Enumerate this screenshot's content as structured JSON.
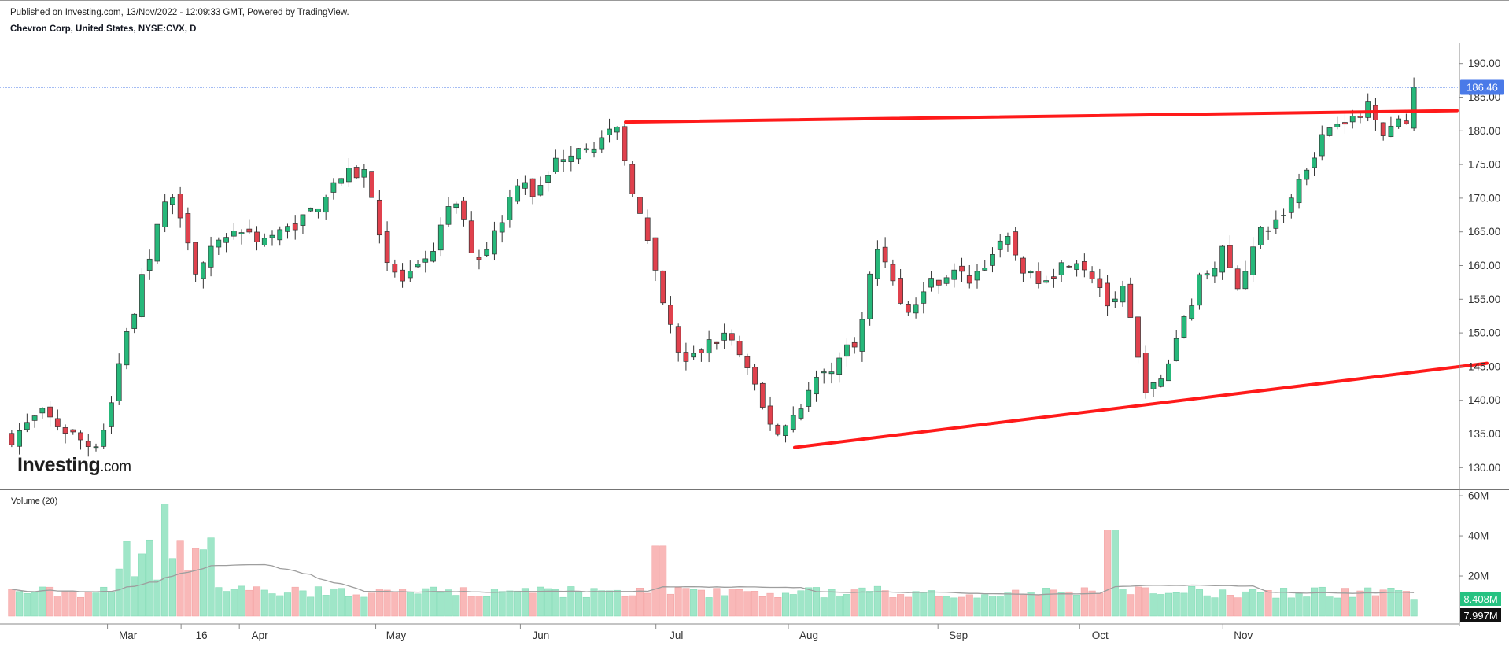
{
  "header": {
    "published": "Published on Investing.com, 13/Nov/2022 - 12:09:33 GMT, Powered by TradingView.",
    "symbol": "Chevron Corp, United States, NYSE:CVX, D"
  },
  "logo": {
    "text": "Investing",
    "suffix": ".com"
  },
  "colors": {
    "up": "#26b87a",
    "down": "#e0414d",
    "up_vol": "#9fe6c8",
    "down_vol": "#f9b8b8",
    "trendline": "#ff1a1a",
    "ma": "#9e9e9e",
    "last_price_bg": "#4a7ae8"
  },
  "chart_data": {
    "type": "candlestick",
    "price_axis": {
      "ticks": [
        130,
        135,
        140,
        145,
        150,
        155,
        160,
        165,
        170,
        175,
        180,
        185,
        190
      ],
      "tick_labels": [
        "130.00",
        "135.00",
        "140.00",
        "145.00",
        "150.00",
        "155.00",
        "160.00",
        "165.00",
        "170.00",
        "175.00",
        "180.00",
        "185.00",
        "190.00"
      ],
      "ylim": [
        127,
        193
      ]
    },
    "last_price": "186.46",
    "x_labels": [
      "Mar",
      "16",
      "Apr",
      "May",
      "Jun",
      "Jul",
      "Aug",
      "Sep",
      "Oct",
      "Nov"
    ],
    "volume_panel": {
      "title": "Volume (20)",
      "ticks": [
        "60M",
        "40M",
        "20M"
      ],
      "tick_values": [
        60,
        40,
        20
      ],
      "ylim": [
        0,
        62
      ],
      "last_volume": "8.408M",
      "ma_value": "7.997M"
    },
    "trendlines": [
      {
        "name": "resistance",
        "from": [
          0.408,
          181.3
        ],
        "to": [
          1.0,
          183.0
        ]
      },
      {
        "name": "support",
        "from": [
          0.512,
          133.0
        ],
        "to": [
          1.0,
          145.5
        ]
      }
    ]
  }
}
